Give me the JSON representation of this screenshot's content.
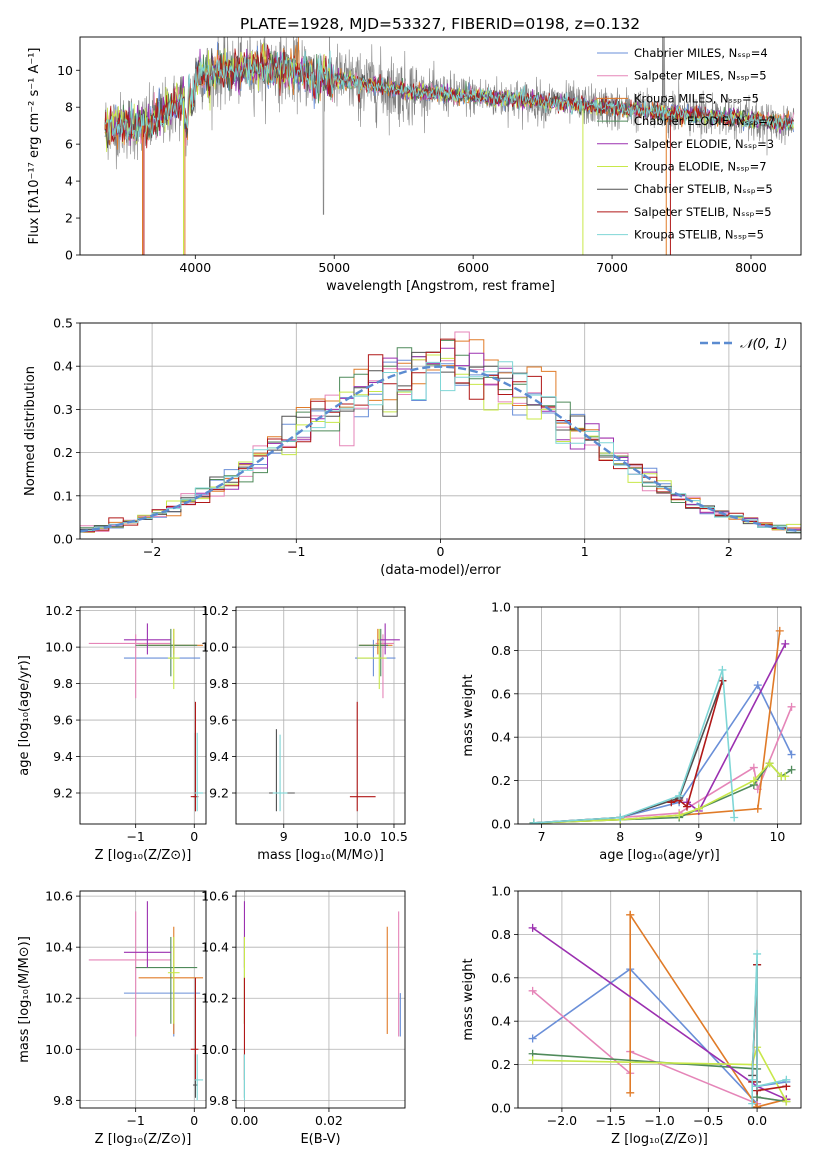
{
  "figure": {
    "title": "PLATE=1928, MJD=53327, FIBERID=0198, z=0.132"
  },
  "chart_data": [
    {
      "id": "spectrum",
      "type": "line",
      "xlabel": "wavelength [Angstrom, rest frame]",
      "ylabel": "Flux [fλ10⁻¹⁷ erg cm⁻² s⁻¹ A⁻¹]",
      "xlim": [
        3170,
        8360
      ],
      "ylim": [
        0,
        11.8
      ],
      "xticks": [
        4000,
        5000,
        6000,
        7000,
        8000
      ],
      "yticks": [
        0,
        2,
        4,
        6,
        8,
        10
      ],
      "grid": false,
      "legend": "upper right",
      "data_series": {
        "name": "data",
        "color": "#808080"
      },
      "series": [
        {
          "name": "Chabrier MILES, Nₛₛₚ=4",
          "color": "#6a8fd8"
        },
        {
          "name": "Salpeter MILES, Nₛₛₚ=5",
          "color": "#e585b8"
        },
        {
          "name": "Kroupa MILES, Nₛₛₚ=5",
          "color": "#e07b28"
        },
        {
          "name": "Chabrier ELODIE, Nₛₛₚ=7",
          "color": "#4f8a5a"
        },
        {
          "name": "Salpeter ELODIE, Nₛₛₚ=3",
          "color": "#9b30b0"
        },
        {
          "name": "Kroupa ELODIE, Nₛₛₚ=7",
          "color": "#c8e84a"
        },
        {
          "name": "Chabrier STELIB, Nₛₛₚ=5",
          "color": "#505050"
        },
        {
          "name": "Salpeter STELIB, Nₛₛₚ=5",
          "color": "#b01818"
        },
        {
          "name": "Kroupa STELIB, Nₛₛₚ=5",
          "color": "#7fd6d6"
        }
      ]
    },
    {
      "id": "residuals",
      "type": "step",
      "xlabel": "(data-model)/error",
      "ylabel": "Normed distribution",
      "xlim": [
        -2.5,
        2.5
      ],
      "ylim": [
        0,
        0.5
      ],
      "xticks": [
        -2,
        -1,
        0,
        1,
        2
      ],
      "xtick_labels": [
        "−2",
        "−1",
        "0",
        "1",
        "2"
      ],
      "yticks": [
        0,
        0.1,
        0.2,
        0.3,
        0.4,
        0.5
      ],
      "ytick_labels": [
        "0.0",
        "0.1",
        "0.2",
        "0.3",
        "0.4",
        "0.5"
      ],
      "grid": true,
      "legend": "upper right",
      "reference": {
        "name": "𝒩(0, 1)",
        "mean": 0,
        "sigma": 1,
        "color": "#5b8bd0"
      },
      "bin_width": 0.1
    },
    {
      "id": "age_vs_Z",
      "type": "errorbar",
      "xlabel": "Z [log₁₀(Z/Z⊙)]",
      "ylabel": "age  [log₁₀(age/yr)]",
      "xlim": [
        -1.95,
        0.2
      ],
      "ylim": [
        9.03,
        10.22
      ],
      "xticks": [
        -1,
        0
      ],
      "xtick_labels": [
        "−1",
        "0"
      ],
      "yticks": [
        9.2,
        9.4,
        9.6,
        9.8,
        10.0,
        10.2
      ],
      "ytick_labels": [
        "9.2",
        "9.4",
        "9.6",
        "9.8",
        "10.0",
        "10.2"
      ],
      "grid": true,
      "points": [
        {
          "series": "Chabrier MILES",
          "x": -0.35,
          "xerr": [
            0.85,
            0.45
          ],
          "y": 9.94,
          "yerr": [
            0,
            0.1
          ]
        },
        {
          "series": "Salpeter MILES",
          "x": -1.0,
          "xerr": [
            0.8,
            0.6
          ],
          "y": 10.02,
          "yerr": [
            0.3,
            0.05
          ]
        },
        {
          "series": "Kroupa MILES",
          "x": -0.35,
          "xerr": [
            0.6,
            0.5
          ],
          "y": 10.01,
          "yerr": [
            0.05,
            0.09
          ]
        },
        {
          "series": "Chabrier ELODIE",
          "x": -0.4,
          "xerr": [
            0.6,
            0.45
          ],
          "y": 10.01,
          "yerr": [
            0.17,
            0.09
          ]
        },
        {
          "series": "Salpeter ELODIE",
          "x": -0.8,
          "xerr": [
            0.4,
            0.4
          ],
          "y": 10.04,
          "yerr": [
            0.08,
            0.09
          ]
        },
        {
          "series": "Kroupa ELODIE",
          "x": -0.35,
          "xerr": [
            0.1,
            0.1
          ],
          "y": 9.94,
          "yerr": [
            0.17,
            0.16
          ]
        },
        {
          "series": "Chabrier STELIB",
          "x": 0.02,
          "xerr": [
            0.04,
            0.04
          ],
          "y": 9.18,
          "yerr": [
            0.08,
            0.35
          ]
        },
        {
          "series": "Salpeter STELIB",
          "x": 0.02,
          "xerr": [
            0.08,
            0.05
          ],
          "y": 9.18,
          "yerr": [
            0.08,
            0.52
          ]
        },
        {
          "series": "Kroupa STELIB",
          "x": 0.05,
          "xerr": [
            0.04,
            0.1
          ],
          "y": 9.2,
          "yerr": [
            0.1,
            0.33
          ]
        }
      ]
    },
    {
      "id": "age_vs_mass",
      "type": "errorbar",
      "xlabel": "mass [log₁₀(M/M⊙)]",
      "xlim": [
        8.35,
        10.65
      ],
      "ylim": [
        9.03,
        10.22
      ],
      "xticks": [
        9,
        10,
        10.5
      ],
      "xtick_labels": [
        "9",
        "10.0",
        "10.5"
      ],
      "yticks": [
        9.2,
        9.4,
        9.6,
        9.8,
        10.0,
        10.2
      ],
      "ytick_labels": [
        "9.2",
        "9.4",
        "9.6",
        "9.8",
        "10.0",
        "10.2"
      ],
      "grid": true,
      "points": [
        {
          "series": "Chabrier MILES",
          "x": 10.22,
          "xerr": [
            0.25,
            0.3
          ],
          "y": 9.94,
          "yerr": [
            0.1,
            0.1
          ]
        },
        {
          "series": "Salpeter MILES",
          "x": 10.35,
          "xerr": [
            0.1,
            0.15
          ],
          "y": 10.02,
          "yerr": [
            0.3,
            0.05
          ]
        },
        {
          "series": "Kroupa MILES",
          "x": 10.28,
          "xerr": [
            0.25,
            0.2
          ],
          "y": 10.01,
          "yerr": [
            0.05,
            0.09
          ]
        },
        {
          "series": "Chabrier ELODIE",
          "x": 10.32,
          "xerr": [
            0.3,
            0.1
          ],
          "y": 10.01,
          "yerr": [
            0.17,
            0.09
          ]
        },
        {
          "series": "Salpeter ELODIE",
          "x": 10.38,
          "xerr": [
            0.1,
            0.2
          ],
          "y": 10.04,
          "yerr": [
            0.08,
            0.09
          ]
        },
        {
          "series": "Kroupa ELODIE",
          "x": 10.3,
          "xerr": [
            0.3,
            0.1
          ],
          "y": 9.94,
          "yerr": [
            0.17,
            0.16
          ]
        },
        {
          "series": "Chabrier STELIB",
          "x": 8.9,
          "xerr": [
            0.1,
            0.25
          ],
          "y": 9.2,
          "yerr": [
            0.1,
            0.35
          ]
        },
        {
          "series": "Salpeter STELIB",
          "x": 10.0,
          "xerr": [
            0.1,
            0.25
          ],
          "y": 9.18,
          "yerr": [
            0.08,
            0.52
          ]
        },
        {
          "series": "Kroupa STELIB",
          "x": 8.95,
          "xerr": [
            0.1,
            0.1
          ],
          "y": 9.2,
          "yerr": [
            0.1,
            0.32
          ]
        }
      ]
    },
    {
      "id": "weight_vs_age",
      "type": "line",
      "xlabel": "age  [log₁₀(age/yr)]",
      "ylabel": "mass weight",
      "xlim": [
        6.7,
        10.3
      ],
      "ylim": [
        0,
        1.0
      ],
      "xticks": [
        7,
        8,
        9,
        10
      ],
      "yticks": [
        0,
        0.2,
        0.4,
        0.6,
        0.8,
        1.0
      ],
      "ytick_labels": [
        "0.0",
        "0.2",
        "0.4",
        "0.6",
        "0.8",
        "1.0"
      ],
      "grid": true,
      "series": [
        {
          "name": "Chabrier MILES",
          "x": [
            6.9,
            8.0,
            8.75,
            9.75,
            10.18
          ],
          "y": [
            0.005,
            0.03,
            0.1,
            0.64,
            0.32
          ]
        },
        {
          "name": "Salpeter MILES",
          "x": [
            6.9,
            8.0,
            8.75,
            9.7,
            9.75,
            10.18
          ],
          "y": [
            0.005,
            0.03,
            0.05,
            0.26,
            0.16,
            0.54
          ]
        },
        {
          "name": "Kroupa MILES",
          "x": [
            6.9,
            8.0,
            8.75,
            9.75,
            10.03
          ],
          "y": [
            0.005,
            0.02,
            0.04,
            0.07,
            0.89
          ]
        },
        {
          "name": "Chabrier ELODIE",
          "x": [
            6.9,
            8.0,
            8.75,
            9.0,
            9.7,
            9.9,
            10.05,
            10.18
          ],
          "y": [
            0.005,
            0.02,
            0.03,
            0.07,
            0.18,
            0.28,
            0.22,
            0.25
          ]
        },
        {
          "name": "Salpeter ELODIE",
          "x": [
            8.85,
            9.0,
            10.1
          ],
          "y": [
            0.1,
            0.06,
            0.83
          ]
        },
        {
          "name": "Kroupa ELODIE",
          "x": [
            6.9,
            8.0,
            8.75,
            9.0,
            9.7,
            9.9,
            10.05,
            10.1
          ],
          "y": [
            0.005,
            0.02,
            0.04,
            0.07,
            0.2,
            0.28,
            0.22,
            0.22
          ]
        },
        {
          "name": "Chabrier STELIB",
          "x": [
            6.9,
            8.0,
            8.75,
            9.3
          ],
          "y": [
            0.005,
            0.03,
            0.12,
            0.66
          ]
        },
        {
          "name": "Salpeter STELIB",
          "x": [
            8.65,
            8.75,
            8.85,
            9.3
          ],
          "y": [
            0.1,
            0.11,
            0.08,
            0.66
          ]
        },
        {
          "name": "Kroupa STELIB",
          "x": [
            6.9,
            8.0,
            8.75,
            9.3,
            9.45
          ],
          "y": [
            0.005,
            0.03,
            0.13,
            0.71,
            0.03
          ]
        }
      ]
    },
    {
      "id": "mass_vs_Z",
      "type": "errorbar",
      "xlabel": "Z [log₁₀(Z/Z⊙)]",
      "ylabel": "mass [log₁₀(M/M⊙)]",
      "xlim": [
        -1.95,
        0.2
      ],
      "ylim": [
        9.77,
        10.62
      ],
      "xticks": [
        -1,
        0
      ],
      "xtick_labels": [
        "−1",
        "0"
      ],
      "yticks": [
        9.8,
        10.0,
        10.2,
        10.4,
        10.6
      ],
      "ytick_labels": [
        "9.8",
        "10.0",
        "10.2",
        "10.4",
        "10.6"
      ],
      "grid": true,
      "points": [
        {
          "series": "Chabrier MILES",
          "x": -0.35,
          "xerr": [
            0.85,
            0.45
          ],
          "y": 10.22,
          "yerr": [
            0.17,
            0.0
          ]
        },
        {
          "series": "Salpeter MILES",
          "x": -1.0,
          "xerr": [
            0.8,
            0.6
          ],
          "y": 10.35,
          "yerr": [
            0.3,
            0.19
          ]
        },
        {
          "series": "Kroupa MILES",
          "x": -0.35,
          "xerr": [
            0.6,
            0.5
          ],
          "y": 10.28,
          "yerr": [
            0.22,
            0.2
          ]
        },
        {
          "series": "Chabrier ELODIE",
          "x": -0.4,
          "xerr": [
            0.6,
            0.45
          ],
          "y": 10.32,
          "yerr": [
            0.22,
            0.12
          ]
        },
        {
          "series": "Salpeter ELODIE",
          "x": -0.8,
          "xerr": [
            0.4,
            0.4
          ],
          "y": 10.38,
          "yerr": [
            0.06,
            0.2
          ]
        },
        {
          "series": "Kroupa ELODIE",
          "x": -0.35,
          "xerr": [
            0.1,
            0.1
          ],
          "y": 10.3,
          "yerr": [
            0.2,
            0.14
          ]
        },
        {
          "series": "Chabrier STELIB",
          "x": 0.02,
          "xerr": [
            0.04,
            0.04
          ],
          "y": 9.86,
          "yerr": [
            0.05,
            0.12
          ]
        },
        {
          "series": "Salpeter STELIB",
          "x": 0.02,
          "xerr": [
            0.08,
            0.05
          ],
          "y": 10.0,
          "yerr": [
            0.12,
            0.28
          ]
        },
        {
          "series": "Kroupa STELIB",
          "x": 0.05,
          "xerr": [
            0.04,
            0.1
          ],
          "y": 9.88,
          "yerr": [
            0.08,
            0.1
          ]
        }
      ]
    },
    {
      "id": "mass_vs_ebv",
      "type": "errorbar",
      "xlabel": "E(B-V)",
      "xlim": [
        -0.002,
        0.038
      ],
      "ylim": [
        9.77,
        10.62
      ],
      "xticks": [
        0.0,
        0.02
      ],
      "xtick_labels": [
        "0.00",
        "0.02"
      ],
      "yticks": [
        9.8,
        10.0,
        10.2,
        10.4,
        10.6
      ],
      "ytick_labels": [
        "9.8",
        "10.0",
        "10.2",
        "10.4",
        "10.6"
      ],
      "grid": true,
      "points": [
        {
          "series": "Chabrier MILES",
          "x": 0.0369,
          "y": 10.22,
          "yerr": [
            0.17,
            0.0
          ]
        },
        {
          "series": "Salpeter MILES",
          "x": 0.0365,
          "y": 10.35,
          "yerr": [
            0.3,
            0.19
          ]
        },
        {
          "series": "Kroupa MILES",
          "x": 0.0338,
          "y": 10.28,
          "yerr": [
            0.22,
            0.2
          ]
        },
        {
          "series": "Chabrier ELODIE",
          "x": 0.0,
          "y": 10.32,
          "yerr": [
            0.22,
            0.12
          ]
        },
        {
          "series": "Salpeter ELODIE",
          "x": 0.0,
          "y": 10.38,
          "yerr": [
            0.06,
            0.2
          ]
        },
        {
          "series": "Kroupa ELODIE",
          "x": 0.0,
          "y": 10.3,
          "yerr": [
            0.2,
            0.14
          ]
        },
        {
          "series": "Chabrier STELIB",
          "x": 0.0,
          "y": 9.86,
          "yerr": [
            0.05,
            0.12
          ]
        },
        {
          "series": "Salpeter STELIB",
          "x": 0.0,
          "y": 10.0,
          "yerr": [
            0.12,
            0.28
          ]
        },
        {
          "series": "Kroupa STELIB",
          "x": 0.0,
          "y": 9.88,
          "yerr": [
            0.08,
            0.1
          ]
        }
      ]
    },
    {
      "id": "weight_vs_Z",
      "type": "line",
      "xlabel": "Z [log₁₀(Z/Z⊙)]",
      "ylabel": "mass weight",
      "xlim": [
        -2.45,
        0.45
      ],
      "ylim": [
        0,
        1.0
      ],
      "xticks": [
        -2.0,
        -1.5,
        -1.0,
        -0.5,
        0.0
      ],
      "xtick_labels": [
        "−2.0",
        "−1.5",
        "−1.0",
        "−0.5",
        "0.0"
      ],
      "yticks": [
        0,
        0.2,
        0.4,
        0.6,
        0.8,
        1.0
      ],
      "ytick_labels": [
        "0.0",
        "0.2",
        "0.4",
        "0.6",
        "0.8",
        "1.0"
      ],
      "grid": true,
      "series": [
        {
          "name": "Chabrier MILES",
          "x": [
            -2.3,
            -1.3,
            0.0,
            0.0,
            0.3
          ],
          "y": [
            0.32,
            0.64,
            0.02,
            0.1,
            0.12
          ]
        },
        {
          "name": "Salpeter MILES",
          "x": [
            -2.3,
            -1.3,
            -1.3,
            0.0,
            0.0,
            0.3
          ],
          "y": [
            0.54,
            0.16,
            0.26,
            0.02,
            0.05,
            0.03
          ]
        },
        {
          "name": "Kroupa MILES",
          "x": [
            -1.3,
            -1.3,
            -1.3,
            0.0,
            0.3
          ],
          "y": [
            0.07,
            0.89,
            0.89,
            0.005,
            0.04
          ]
        },
        {
          "name": "Chabrier ELODIE",
          "x": [
            -2.3,
            0.0,
            0.0,
            0.3
          ],
          "y": [
            0.25,
            0.18,
            0.05,
            0.03
          ]
        },
        {
          "name": "Salpeter ELODIE",
          "x": [
            -2.3,
            0.0,
            0.3
          ],
          "y": [
            0.83,
            0.1,
            0.04
          ]
        },
        {
          "name": "Kroupa ELODIE",
          "x": [
            -2.3,
            -0.05,
            0.0,
            0.3
          ],
          "y": [
            0.22,
            0.2,
            0.28,
            0.03
          ]
        },
        {
          "name": "Chabrier STELIB",
          "x": [
            -0.05,
            0.0,
            0.0
          ],
          "y": [
            0.15,
            0.66,
            0.12
          ]
        },
        {
          "name": "Salpeter STELIB",
          "x": [
            -0.05,
            0.0,
            0.0,
            0.3
          ],
          "y": [
            0.12,
            0.66,
            0.08,
            0.1
          ]
        },
        {
          "name": "Kroupa STELIB",
          "x": [
            -0.05,
            -0.05,
            0.0,
            0.0,
            0.3
          ],
          "y": [
            0.02,
            0.13,
            0.71,
            0.1,
            0.13
          ]
        }
      ]
    }
  ]
}
